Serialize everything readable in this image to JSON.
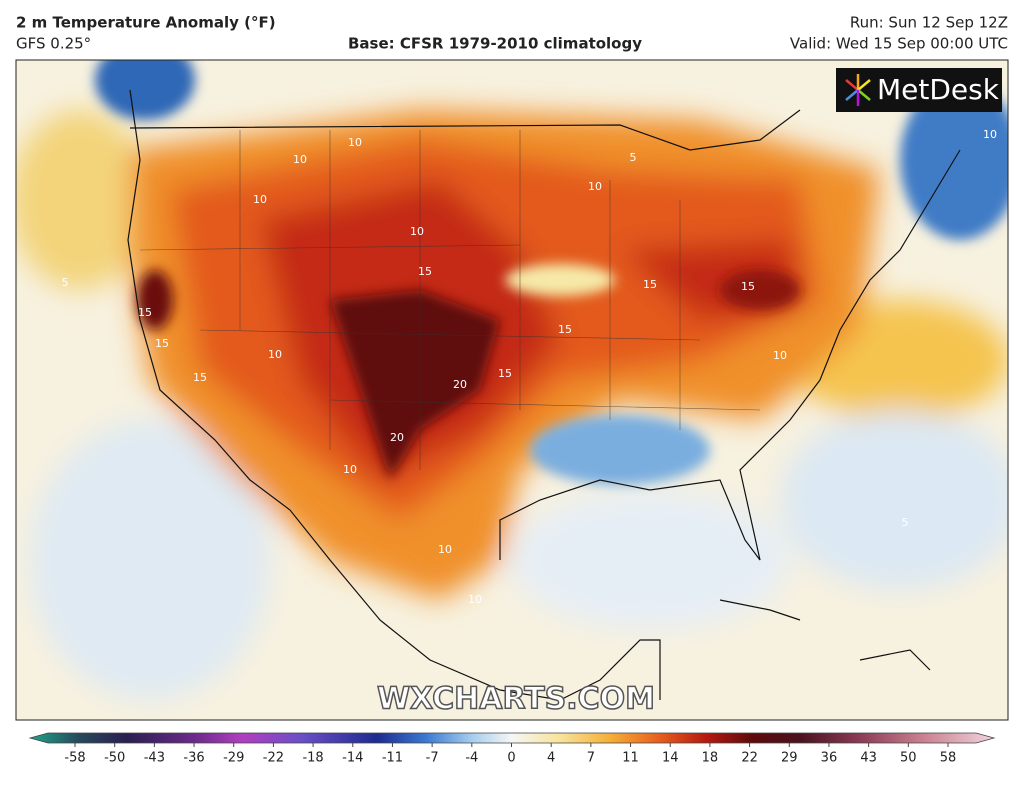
{
  "header": {
    "title": "2 m Temperature Anomaly (°F)",
    "model": "GFS 0.25°",
    "base": "Base: CFSR 1979-2010 climatology",
    "run": "Run: Sun 12 Sep 12Z",
    "valid": "Valid: Wed 15 Sep 00:00 UTC"
  },
  "logo": "MetDesk",
  "watermark": "WXCHARTS.COM",
  "map": {
    "contour_labels": [
      "10",
      "10",
      "5",
      "10",
      "10",
      "10",
      "15",
      "15",
      "15",
      "15",
      "15",
      "20",
      "15",
      "20",
      "10",
      "10",
      "10",
      "10",
      "10",
      "5",
      "5",
      "10",
      "15",
      "15"
    ]
  },
  "colorbar": {
    "ticks": [
      -58,
      -50,
      -43,
      -36,
      -29,
      -22,
      -18,
      -14,
      -11,
      -7,
      -4,
      0,
      4,
      7,
      11,
      14,
      18,
      22,
      29,
      36,
      43,
      50,
      58
    ]
  }
}
